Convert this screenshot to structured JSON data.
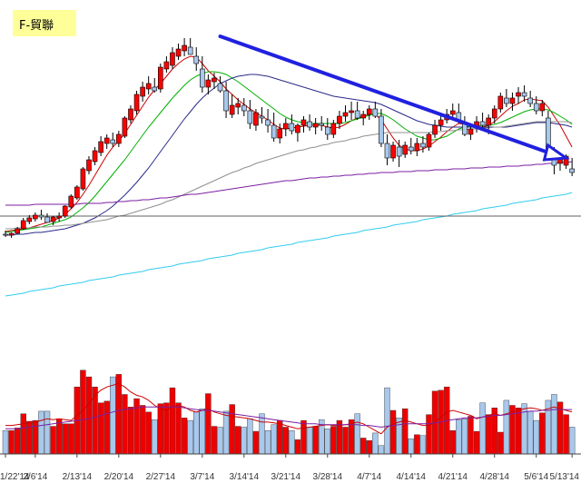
{
  "chart_data": {
    "type": "candlestick",
    "title": "F-貿聯",
    "x_tick_labels": [
      "1/22'14",
      "2/6'14",
      "2/13'14",
      "2/20'14",
      "2/27'14",
      "3/7'14",
      "3/14'14",
      "3/21'14",
      "3/28'14",
      "4/7'14",
      "4/14'14",
      "4/21'14",
      "4/28'14",
      "5/6'14",
      "5/13'14"
    ],
    "x_tick_bar_index": [
      0,
      5,
      12,
      19,
      26,
      33,
      40,
      47,
      54,
      61,
      68,
      75,
      82,
      89,
      95
    ],
    "price_scale": {
      "min": 0,
      "max": 262
    },
    "volume_scale": {
      "min": 0,
      "max": 130
    },
    "candles": [
      [
        4,
        8,
        1,
        3
      ],
      [
        3,
        6,
        0,
        5
      ],
      [
        5,
        12,
        4,
        10
      ],
      [
        10,
        22,
        9,
        19
      ],
      [
        18,
        25,
        15,
        22
      ],
      [
        21,
        28,
        18,
        25
      ],
      [
        25,
        31,
        20,
        23
      ],
      [
        23,
        27,
        19,
        17
      ],
      [
        18,
        24,
        14,
        23
      ],
      [
        22,
        28,
        18,
        24
      ],
      [
        24,
        36,
        22,
        35
      ],
      [
        34,
        48,
        32,
        46
      ],
      [
        44,
        58,
        42,
        56
      ],
      [
        54,
        78,
        52,
        76
      ],
      [
        74,
        90,
        70,
        86
      ],
      [
        84,
        100,
        80,
        96
      ],
      [
        94,
        112,
        90,
        106
      ],
      [
        104,
        114,
        98,
        110
      ],
      [
        108,
        116,
        100,
        104
      ],
      [
        104,
        118,
        100,
        114
      ],
      [
        112,
        134,
        110,
        132
      ],
      [
        130,
        146,
        126,
        142
      ],
      [
        140,
        162,
        136,
        158
      ],
      [
        156,
        172,
        150,
        166
      ],
      [
        164,
        178,
        158,
        170
      ],
      [
        166,
        176,
        160,
        162
      ],
      [
        164,
        192,
        160,
        188
      ],
      [
        186,
        200,
        182,
        194
      ],
      [
        190,
        210,
        186,
        204
      ],
      [
        200,
        214,
        196,
        208
      ],
      [
        206,
        220,
        200,
        212
      ],
      [
        210,
        220,
        204,
        202
      ],
      [
        200,
        210,
        184,
        192
      ],
      [
        186,
        200,
        160,
        166
      ],
      [
        166,
        180,
        158,
        174
      ],
      [
        172,
        182,
        164,
        176
      ],
      [
        170,
        178,
        160,
        162
      ],
      [
        162,
        172,
        132,
        140
      ],
      [
        136,
        158,
        132,
        146
      ],
      [
        144,
        154,
        136,
        148
      ],
      [
        146,
        154,
        134,
        140
      ],
      [
        140,
        152,
        120,
        126
      ],
      [
        124,
        142,
        118,
        138
      ],
      [
        134,
        144,
        126,
        132
      ],
      [
        130,
        142,
        116,
        124
      ],
      [
        124,
        138,
        106,
        110
      ],
      [
        110,
        126,
        104,
        120
      ],
      [
        120,
        132,
        112,
        126
      ],
      [
        126,
        136,
        114,
        118
      ],
      [
        116,
        126,
        106,
        124
      ],
      [
        124,
        134,
        116,
        130
      ],
      [
        128,
        136,
        118,
        122
      ],
      [
        122,
        132,
        114,
        126
      ],
      [
        126,
        134,
        118,
        124
      ],
      [
        122,
        132,
        108,
        114
      ],
      [
        114,
        130,
        110,
        126
      ],
      [
        126,
        140,
        120,
        134
      ],
      [
        134,
        146,
        128,
        138
      ],
      [
        138,
        150,
        130,
        140
      ],
      [
        140,
        150,
        130,
        132
      ],
      [
        132,
        140,
        124,
        136
      ],
      [
        136,
        146,
        130,
        142
      ],
      [
        142,
        150,
        132,
        134
      ],
      [
        134,
        142,
        100,
        104
      ],
      [
        104,
        114,
        80,
        88
      ],
      [
        88,
        106,
        84,
        102
      ],
      [
        100,
        108,
        78,
        90
      ],
      [
        92,
        106,
        88,
        102
      ],
      [
        100,
        110,
        92,
        96
      ],
      [
        96,
        110,
        90,
        104
      ],
      [
        104,
        112,
        94,
        100
      ],
      [
        100,
        116,
        96,
        114
      ],
      [
        114,
        130,
        110,
        124
      ],
      [
        124,
        136,
        118,
        130
      ],
      [
        130,
        142,
        126,
        136
      ],
      [
        136,
        148,
        130,
        140
      ],
      [
        138,
        148,
        126,
        128
      ],
      [
        126,
        134,
        112,
        114
      ],
      [
        114,
        126,
        108,
        120
      ],
      [
        122,
        134,
        116,
        128
      ],
      [
        128,
        138,
        120,
        124
      ],
      [
        124,
        136,
        114,
        132
      ],
      [
        132,
        146,
        126,
        142
      ],
      [
        142,
        160,
        138,
        156
      ],
      [
        154,
        164,
        144,
        148
      ],
      [
        148,
        160,
        140,
        154
      ],
      [
        156,
        166,
        148,
        160
      ],
      [
        160,
        168,
        150,
        156
      ],
      [
        154,
        162,
        144,
        148
      ],
      [
        148,
        156,
        136,
        140
      ],
      [
        140,
        152,
        134,
        148
      ],
      [
        132,
        140,
        90,
        94
      ],
      [
        92,
        100,
        70,
        80
      ],
      [
        82,
        94,
        74,
        88
      ],
      [
        80,
        92,
        76,
        90
      ],
      [
        76,
        88,
        68,
        72
      ]
    ],
    "volumes": [
      28,
      28,
      31,
      48,
      39,
      40,
      51,
      51,
      33,
      42,
      36,
      36,
      80,
      100,
      92,
      80,
      61,
      63,
      92,
      95,
      71,
      56,
      66,
      58,
      50,
      41,
      60,
      61,
      79,
      61,
      43,
      40,
      50,
      54,
      72,
      33,
      32,
      51,
      59,
      33,
      32,
      42,
      27,
      48,
      28,
      35,
      40,
      32,
      28,
      17,
      40,
      32,
      33,
      41,
      30,
      33,
      40,
      32,
      41,
      48,
      19,
      16,
      25,
      10,
      79,
      52,
      43,
      54,
      18,
      23,
      22,
      47,
      75,
      76,
      80,
      28,
      41,
      42,
      45,
      27,
      61,
      47,
      55,
      26,
      64,
      58,
      55,
      60,
      51,
      40,
      49,
      64,
      71,
      62,
      47,
      32
    ],
    "price_lines": [
      {
        "color": "#cc0000",
        "values": [
          7,
          8,
          9,
          10,
          11,
          13,
          15,
          17,
          19,
          22,
          26,
          32,
          39,
          48,
          58,
          69,
          80,
          91,
          100,
          107,
          115,
          125,
          135,
          145,
          155,
          163,
          170,
          178,
          186,
          192,
          197,
          200,
          199,
          192,
          184,
          178,
          172,
          164,
          158,
          152,
          147,
          142,
          138,
          134,
          130,
          125,
          121,
          120,
          121,
          122,
          123,
          124,
          124,
          124,
          122,
          121,
          122,
          125,
          129,
          132,
          134,
          136,
          136,
          130,
          120,
          110,
          102,
          98,
          96,
          96,
          98,
          101,
          106,
          111,
          117,
          122,
          126,
          125,
          124,
          123,
          122,
          124,
          128,
          134,
          140,
          145,
          148,
          152,
          153,
          152,
          151,
          144,
          134,
          124,
          112,
          100
        ]
      },
      {
        "color": "#00b000",
        "values": [
          6,
          7,
          8,
          9,
          10,
          11,
          12,
          14,
          16,
          18,
          20,
          23,
          28,
          33,
          39,
          46,
          54,
          62,
          70,
          78,
          86,
          95,
          104,
          113,
          122,
          130,
          138,
          146,
          154,
          161,
          168,
          174,
          178,
          181,
          183,
          183,
          182,
          180,
          176,
          172,
          167,
          162,
          157,
          152,
          147,
          142,
          137,
          133,
          130,
          128,
          127,
          126,
          126,
          126,
          126,
          126,
          126,
          127,
          129,
          131,
          133,
          135,
          137,
          137,
          134,
          130,
          125,
          120,
          116,
          112,
          110,
          108,
          108,
          110,
          112,
          116,
          120,
          122,
          123,
          123,
          124,
          124,
          125,
          127,
          130,
          133,
          136,
          139,
          141,
          142,
          142,
          141,
          138,
          134,
          130,
          125
        ]
      },
      {
        "color": "#2a2a8a",
        "values": [
          3,
          3,
          4,
          4,
          5,
          6,
          6,
          7,
          8,
          9,
          10,
          12,
          14,
          16,
          19,
          22,
          26,
          30,
          35,
          41,
          47,
          54,
          61,
          69,
          77,
          86,
          95,
          104,
          113,
          122,
          131,
          139,
          147,
          154,
          160,
          165,
          170,
          173,
          176,
          178,
          179,
          180,
          180,
          179,
          178,
          176,
          174,
          172,
          170,
          168,
          166,
          164,
          162,
          160,
          158,
          156,
          155,
          154,
          153,
          152,
          151,
          150,
          149,
          147,
          144,
          141,
          138,
          135,
          132,
          129,
          127,
          125,
          124,
          123,
          122,
          122,
          122,
          122,
          122,
          122,
          122,
          122,
          122,
          122,
          122,
          123,
          124,
          125,
          126,
          127,
          127,
          127,
          126,
          125,
          124,
          122
        ]
      },
      {
        "color": "#909090",
        "values": [
          10,
          10,
          11,
          11,
          11,
          12,
          12,
          12,
          13,
          13,
          14,
          14,
          15,
          16,
          17,
          18,
          19,
          20,
          22,
          24,
          25,
          27,
          29,
          31,
          33,
          35,
          37,
          40,
          42,
          45,
          48,
          51,
          54,
          57,
          60,
          63,
          66,
          69,
          72,
          74,
          77,
          79,
          82,
          84,
          86,
          88,
          90,
          92,
          94,
          96,
          97,
          99,
          100,
          102,
          103,
          105,
          106,
          107,
          109,
          110,
          112,
          113,
          114,
          115,
          116,
          116,
          116,
          116,
          116,
          116,
          116,
          116,
          117,
          117,
          118,
          118,
          119,
          119,
          120,
          120,
          121,
          121,
          122,
          122,
          123,
          124,
          125,
          126,
          127,
          128,
          128,
          128,
          128,
          128,
          128,
          127
        ]
      },
      {
        "color": "#7b1fa2",
        "values": [
          36,
          36,
          36,
          36,
          36,
          37,
          37,
          37,
          37,
          37,
          37,
          37,
          37,
          38,
          38,
          38,
          38,
          39,
          39,
          40,
          40,
          41,
          41,
          42,
          42,
          43,
          44,
          44,
          45,
          46,
          47,
          48,
          48,
          49,
          50,
          51,
          52,
          53,
          54,
          55,
          56,
          57,
          58,
          59,
          60,
          61,
          62,
          63,
          63,
          64,
          65,
          66,
          66,
          67,
          67,
          68,
          68,
          69,
          69,
          70,
          70,
          71,
          71,
          72,
          72,
          72,
          73,
          73,
          73,
          74,
          74,
          74,
          75,
          75,
          75,
          76,
          76,
          76,
          77,
          77,
          77,
          78,
          78,
          78,
          79,
          79,
          79,
          80,
          80,
          81,
          81,
          82,
          82,
          83,
          83,
          84
        ]
      },
      {
        "color": "#33ccee",
        "values": [
          -64,
          -63,
          -62,
          -61,
          -59,
          -58,
          -57,
          -56,
          -55,
          -53,
          -52,
          -51,
          -50,
          -49,
          -47,
          -46,
          -45,
          -44,
          -43,
          -41,
          -40,
          -39,
          -38,
          -37,
          -35,
          -34,
          -33,
          -32,
          -31,
          -29,
          -28,
          -27,
          -26,
          -25,
          -23,
          -22,
          -21,
          -20,
          -19,
          -17,
          -16,
          -15,
          -14,
          -13,
          -11,
          -10,
          -9,
          -8,
          -7,
          -5,
          -4,
          -3,
          -2,
          -1,
          0,
          2,
          3,
          4,
          5,
          6,
          8,
          9,
          10,
          11,
          12,
          14,
          15,
          16,
          17,
          18,
          20,
          21,
          22,
          23,
          24,
          26,
          27,
          28,
          29,
          30,
          32,
          33,
          34,
          35,
          36,
          38,
          39,
          40,
          41,
          42,
          44,
          45,
          46,
          47,
          48,
          50
        ]
      }
    ],
    "volume_lines": [
      {
        "color": "#cc0000",
        "values": [
          34,
          34,
          35,
          36,
          37,
          38,
          40,
          42,
          41,
          42,
          41,
          40,
          46,
          52,
          60,
          70,
          76,
          80,
          82,
          84,
          80,
          74,
          70,
          68,
          64,
          58,
          54,
          52,
          56,
          58,
          56,
          52,
          50,
          52,
          54,
          50,
          48,
          46,
          45,
          44,
          43,
          42,
          40,
          38,
          38,
          37,
          36,
          34,
          32,
          30,
          31,
          32,
          33,
          34,
          35,
          34,
          34,
          35,
          36,
          38,
          36,
          32,
          28,
          24,
          32,
          36,
          38,
          40,
          38,
          36,
          34,
          34,
          38,
          44,
          50,
          52,
          50,
          48,
          46,
          42,
          44,
          46,
          48,
          46,
          48,
          50,
          52,
          54,
          55,
          54,
          52,
          54,
          56,
          54,
          52,
          50
        ]
      },
      {
        "color": "#7b1fa2",
        "values": [
          30,
          30,
          30,
          31,
          32,
          33,
          34,
          35,
          36,
          37,
          38,
          39,
          40,
          41,
          42,
          44,
          46,
          48,
          50,
          52,
          53,
          54,
          55,
          56,
          56,
          56,
          56,
          56,
          56,
          56,
          55,
          54,
          53,
          52,
          52,
          51,
          50,
          49,
          48,
          47,
          46,
          45,
          44,
          43,
          42,
          41,
          40,
          39,
          38,
          37,
          36,
          36,
          36,
          35,
          35,
          35,
          35,
          35,
          35,
          35,
          34,
          34,
          33,
          32,
          33,
          34,
          35,
          36,
          36,
          36,
          36,
          36,
          37,
          38,
          40,
          41,
          42,
          43,
          43,
          43,
          44,
          45,
          46,
          46,
          47,
          48,
          49,
          50,
          51,
          51,
          52,
          52,
          53,
          53,
          53,
          53
        ]
      }
    ],
    "trendline": {
      "from_bar": 36,
      "from_price": 222,
      "to_bar": 94,
      "to_price": 88,
      "color": "#2020e0"
    },
    "horizontal_reference": {
      "price": 12,
      "color": "#606060"
    }
  }
}
